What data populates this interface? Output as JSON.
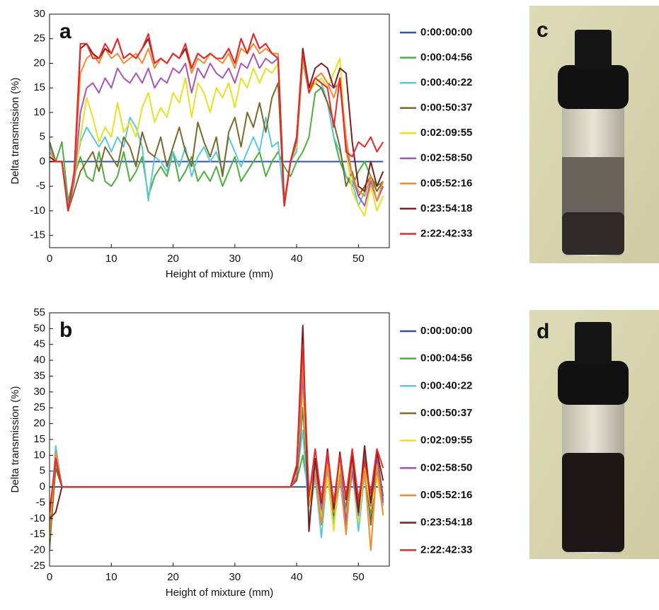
{
  "chart_data": [
    {
      "type": "line",
      "label": "a",
      "xlabel": "Height of mixture (mm)",
      "ylabel": "Delta transmission (%)",
      "xlim": [
        0,
        55
      ],
      "ylim": [
        -17.5,
        30
      ],
      "xticks": [
        0,
        10,
        20,
        30,
        40,
        50
      ],
      "yticks": [
        -15,
        -10,
        -5,
        0,
        5,
        10,
        15,
        20,
        25,
        30
      ],
      "x": [
        0,
        1,
        2,
        3,
        4,
        5,
        6,
        7,
        8,
        9,
        10,
        11,
        12,
        13,
        14,
        15,
        16,
        17,
        18,
        19,
        20,
        21,
        22,
        23,
        24,
        25,
        26,
        27,
        28,
        29,
        30,
        31,
        32,
        33,
        34,
        35,
        36,
        37,
        38,
        39,
        40,
        41,
        42,
        43,
        44,
        45,
        46,
        47,
        48,
        49,
        50,
        51,
        52,
        53,
        54
      ],
      "series": [
        {
          "name": "0:00:00:00",
          "color": "#3553a8",
          "values": [
            0,
            0,
            0,
            0,
            0,
            0,
            0,
            0,
            0,
            0,
            0,
            0,
            0,
            0,
            0,
            0,
            0,
            0,
            0,
            0,
            0,
            0,
            0,
            0,
            0,
            0,
            0,
            0,
            0,
            0,
            0,
            0,
            0,
            0,
            0,
            0,
            0,
            0,
            0,
            0,
            0,
            0,
            0,
            0,
            0,
            0,
            0,
            0,
            0,
            0,
            0,
            0,
            0,
            0,
            0
          ]
        },
        {
          "name": "0:00:04:56",
          "color": "#4caf3e",
          "values": [
            4,
            0,
            4,
            -8,
            -3,
            1,
            -3,
            -4,
            2,
            -4,
            -5,
            -3,
            2,
            -4,
            -2,
            1,
            -7,
            -3,
            -1,
            -3,
            2,
            -4,
            -2,
            1,
            -4,
            -2,
            -4,
            -1,
            -5,
            -2,
            1,
            -4,
            -2,
            0,
            2,
            -3,
            0,
            2,
            -1,
            -3,
            0,
            2,
            5,
            14,
            15,
            12,
            5,
            0,
            -3,
            -5,
            -2,
            0,
            -3,
            -5,
            -4
          ]
        },
        {
          "name": "0:00:40:22",
          "color": "#5bc8d8",
          "values": [
            3,
            0,
            0,
            -9,
            -3,
            4,
            7,
            5,
            3,
            5,
            2,
            5,
            3,
            9,
            7,
            3,
            -8,
            1,
            0,
            -2,
            2,
            -1,
            3,
            -3,
            1,
            3,
            0,
            2,
            -2,
            5,
            2,
            -1,
            2,
            5,
            2,
            9,
            3,
            4,
            -9,
            0,
            2,
            20,
            14,
            17,
            16,
            12,
            5,
            2,
            -3,
            -4,
            -9,
            -6,
            -4,
            -8,
            -5
          ]
        },
        {
          "name": "0:00:50:37",
          "color": "#7a6a2a",
          "values": [
            4,
            0,
            0,
            -10,
            -6,
            -2,
            0,
            2,
            -2,
            3,
            1,
            -1,
            5,
            3,
            -1,
            6,
            2,
            1,
            5,
            -1,
            3,
            7,
            2,
            -1,
            8,
            4,
            1,
            5,
            -3,
            6,
            9,
            3,
            10,
            7,
            12,
            6,
            13,
            16,
            -9,
            0,
            3,
            22,
            15,
            16,
            15,
            12,
            8,
            3,
            -5,
            -2,
            -7,
            -5,
            -3,
            -6,
            -4
          ]
        },
        {
          "name": "0:02:09:55",
          "color": "#e8e020",
          "values": [
            2,
            0,
            0,
            -10,
            -4,
            5,
            13,
            9,
            4,
            7,
            5,
            12,
            6,
            8,
            5,
            11,
            14,
            8,
            11,
            9,
            14,
            12,
            17,
            9,
            16,
            14,
            10,
            15,
            13,
            16,
            11,
            17,
            15,
            19,
            16,
            19,
            18,
            20,
            -8,
            0,
            3,
            21,
            14,
            16,
            17,
            15,
            18,
            21,
            2,
            -6,
            -9,
            -11,
            -5,
            -10,
            -7
          ]
        },
        {
          "name": "0:02:58:50",
          "color": "#a855b5",
          "values": [
            2,
            0,
            0,
            -10,
            -4,
            10,
            15,
            16,
            14,
            17,
            15,
            19,
            17,
            16,
            18,
            16,
            19,
            15,
            17,
            16,
            19,
            18,
            20,
            14,
            19,
            17,
            20,
            18,
            17,
            19,
            16,
            20,
            19,
            22,
            19,
            21,
            20,
            21,
            -8,
            0,
            4,
            22,
            15,
            17,
            18,
            16,
            15,
            16,
            3,
            -3,
            -7,
            -9,
            -4,
            -8,
            -5
          ]
        },
        {
          "name": "0:05:52:16",
          "color": "#f28a2e",
          "values": [
            2,
            0,
            0,
            -10,
            -3,
            18,
            21,
            22,
            20,
            23,
            21,
            22,
            20,
            21,
            22,
            20,
            23,
            19,
            21,
            20,
            22,
            21,
            23,
            18,
            21,
            20,
            22,
            21,
            20,
            22,
            19,
            23,
            22,
            24,
            22,
            23,
            22,
            22,
            -8,
            0,
            5,
            23,
            15,
            17,
            18,
            16,
            13,
            17,
            5,
            -3,
            -6,
            -7,
            -3,
            -8,
            -4
          ]
        },
        {
          "name": "0:23:54:18",
          "color": "#7a1f1f",
          "values": [
            1,
            0,
            0,
            -10,
            -2,
            23,
            24,
            22,
            21,
            23,
            22,
            25,
            21,
            22,
            21,
            23,
            25,
            20,
            21,
            20,
            22,
            21,
            23,
            19,
            22,
            21,
            22,
            21,
            21,
            23,
            20,
            25,
            22,
            26,
            23,
            24,
            22,
            21,
            -9,
            0,
            5,
            23,
            15,
            19,
            20,
            19,
            15,
            19,
            18,
            4,
            -5,
            -6,
            0,
            -5,
            -2
          ]
        },
        {
          "name": "2:22:42:33",
          "color": "#e8282a",
          "values": [
            0,
            0,
            0,
            -10,
            -2,
            24,
            24,
            21,
            21,
            24,
            22,
            25,
            21,
            22,
            21,
            23,
            26,
            20,
            21,
            20,
            22,
            21,
            24,
            19,
            22,
            21,
            22,
            21,
            21,
            23,
            20,
            25,
            22,
            26,
            23,
            24,
            22,
            21,
            -9,
            0,
            5,
            22,
            14,
            17,
            16,
            15,
            7,
            17,
            2,
            1,
            4,
            3,
            5,
            2,
            4
          ]
        }
      ]
    },
    {
      "type": "line",
      "label": "b",
      "xlabel": "Height of mixture (mm)",
      "ylabel": "Delta transmission (%)",
      "xlim": [
        0,
        55
      ],
      "ylim": [
        -25,
        55
      ],
      "xticks": [
        0,
        10,
        20,
        30,
        40,
        50
      ],
      "yticks": [
        -25,
        -20,
        -15,
        -10,
        -5,
        0,
        5,
        10,
        15,
        20,
        25,
        30,
        35,
        40,
        45,
        50,
        55
      ],
      "x": [
        0,
        1,
        2,
        3,
        4,
        5,
        6,
        7,
        8,
        9,
        10,
        11,
        12,
        13,
        14,
        15,
        16,
        17,
        18,
        19,
        20,
        21,
        22,
        23,
        24,
        25,
        26,
        27,
        28,
        29,
        30,
        31,
        32,
        33,
        34,
        35,
        36,
        37,
        38,
        39,
        40,
        41,
        42,
        43,
        44,
        45,
        46,
        47,
        48,
        49,
        50,
        51,
        52,
        53,
        54
      ],
      "series": [
        {
          "name": "0:00:00:00",
          "color": "#3553a8",
          "values": [
            0,
            0,
            0,
            0,
            0,
            0,
            0,
            0,
            0,
            0,
            0,
            0,
            0,
            0,
            0,
            0,
            0,
            0,
            0,
            0,
            0,
            0,
            0,
            0,
            0,
            0,
            0,
            0,
            0,
            0,
            0,
            0,
            0,
            0,
            0,
            0,
            0,
            0,
            0,
            0,
            0,
            0,
            0,
            0,
            0,
            0,
            0,
            0,
            0,
            0,
            0,
            0,
            0,
            0,
            0
          ]
        },
        {
          "name": "0:00:04:56",
          "color": "#4caf3e",
          "values": [
            -20,
            8,
            0,
            0,
            0,
            0,
            0,
            0,
            0,
            0,
            0,
            0,
            0,
            0,
            0,
            0,
            0,
            0,
            0,
            0,
            0,
            0,
            0,
            0,
            0,
            0,
            0,
            0,
            0,
            0,
            0,
            0,
            0,
            0,
            0,
            0,
            0,
            0,
            0,
            0,
            2,
            10,
            -3,
            5,
            -8,
            6,
            -10,
            4,
            -12,
            8,
            -6,
            10,
            -8,
            5,
            -4
          ]
        },
        {
          "name": "0:00:40:22",
          "color": "#5bc8d8",
          "values": [
            -15,
            13,
            0,
            0,
            0,
            0,
            0,
            0,
            0,
            0,
            0,
            0,
            0,
            0,
            0,
            0,
            0,
            0,
            0,
            0,
            0,
            0,
            0,
            0,
            0,
            0,
            0,
            0,
            0,
            0,
            0,
            0,
            0,
            0,
            0,
            0,
            0,
            0,
            0,
            0,
            3,
            18,
            -10,
            3,
            -16,
            5,
            -12,
            2,
            -8,
            6,
            -14,
            4,
            -10,
            8,
            -6
          ]
        },
        {
          "name": "0:00:50:37",
          "color": "#7a6a2a",
          "values": [
            -18,
            6,
            0,
            0,
            0,
            0,
            0,
            0,
            0,
            0,
            0,
            0,
            0,
            0,
            0,
            0,
            0,
            0,
            0,
            0,
            0,
            0,
            0,
            0,
            0,
            0,
            0,
            0,
            0,
            0,
            0,
            0,
            0,
            0,
            0,
            0,
            0,
            0,
            0,
            0,
            2,
            25,
            -5,
            8,
            -6,
            10,
            -9,
            5,
            -7,
            11,
            -5,
            9,
            -12,
            10,
            -3
          ]
        },
        {
          "name": "0:02:09:55",
          "color": "#e8e020",
          "values": [
            -12,
            10,
            0,
            0,
            0,
            0,
            0,
            0,
            0,
            0,
            0,
            0,
            0,
            0,
            0,
            0,
            0,
            0,
            0,
            0,
            0,
            0,
            0,
            0,
            0,
            0,
            0,
            0,
            0,
            0,
            0,
            0,
            0,
            0,
            0,
            0,
            0,
            0,
            0,
            0,
            4,
            30,
            -4,
            6,
            -10,
            3,
            -14,
            7,
            -9,
            4,
            -11,
            6,
            -7,
            3,
            -8
          ]
        },
        {
          "name": "0:02:58:50",
          "color": "#a855b5",
          "values": [
            -14,
            9,
            0,
            0,
            0,
            0,
            0,
            0,
            0,
            0,
            0,
            0,
            0,
            0,
            0,
            0,
            0,
            0,
            0,
            0,
            0,
            0,
            0,
            0,
            0,
            0,
            0,
            0,
            0,
            0,
            0,
            0,
            0,
            0,
            0,
            0,
            0,
            0,
            0,
            0,
            3,
            35,
            -2,
            7,
            -7,
            9,
            -6,
            10,
            -11,
            5,
            -9,
            12,
            -6,
            9,
            -5
          ]
        },
        {
          "name": "0:05:52:16",
          "color": "#f28a2e",
          "values": [
            -16,
            11,
            0,
            0,
            0,
            0,
            0,
            0,
            0,
            0,
            0,
            0,
            0,
            0,
            0,
            0,
            0,
            0,
            0,
            0,
            0,
            0,
            0,
            0,
            0,
            0,
            0,
            0,
            0,
            0,
            0,
            0,
            0,
            0,
            0,
            0,
            0,
            0,
            0,
            0,
            5,
            40,
            -6,
            4,
            -12,
            7,
            -8,
            3,
            -15,
            9,
            -7,
            5,
            -20,
            7,
            -9
          ]
        },
        {
          "name": "0:23:54:18",
          "color": "#7a1f1f",
          "values": [
            -10,
            -8,
            0,
            0,
            0,
            0,
            0,
            0,
            0,
            0,
            0,
            0,
            0,
            0,
            0,
            0,
            0,
            0,
            0,
            0,
            0,
            0,
            0,
            0,
            0,
            0,
            0,
            0,
            0,
            0,
            0,
            0,
            0,
            0,
            0,
            0,
            0,
            0,
            0,
            0,
            6,
            51,
            -14,
            9,
            -5,
            12,
            -7,
            11,
            -4,
            10,
            -8,
            13,
            -5,
            11,
            2
          ]
        },
        {
          "name": "2:22:42:33",
          "color": "#e8282a",
          "values": [
            -8,
            9,
            0,
            0,
            0,
            0,
            0,
            0,
            0,
            0,
            0,
            0,
            0,
            0,
            0,
            0,
            0,
            0,
            0,
            0,
            0,
            0,
            0,
            0,
            0,
            0,
            0,
            0,
            0,
            0,
            0,
            0,
            0,
            0,
            0,
            0,
            0,
            0,
            0,
            0,
            7,
            45,
            -3,
            12,
            -4,
            11,
            -5,
            10,
            -3,
            12,
            -4,
            8,
            -2,
            12,
            6
          ]
        }
      ]
    }
  ],
  "photos": [
    {
      "label": "c"
    },
    {
      "label": "d"
    }
  ]
}
